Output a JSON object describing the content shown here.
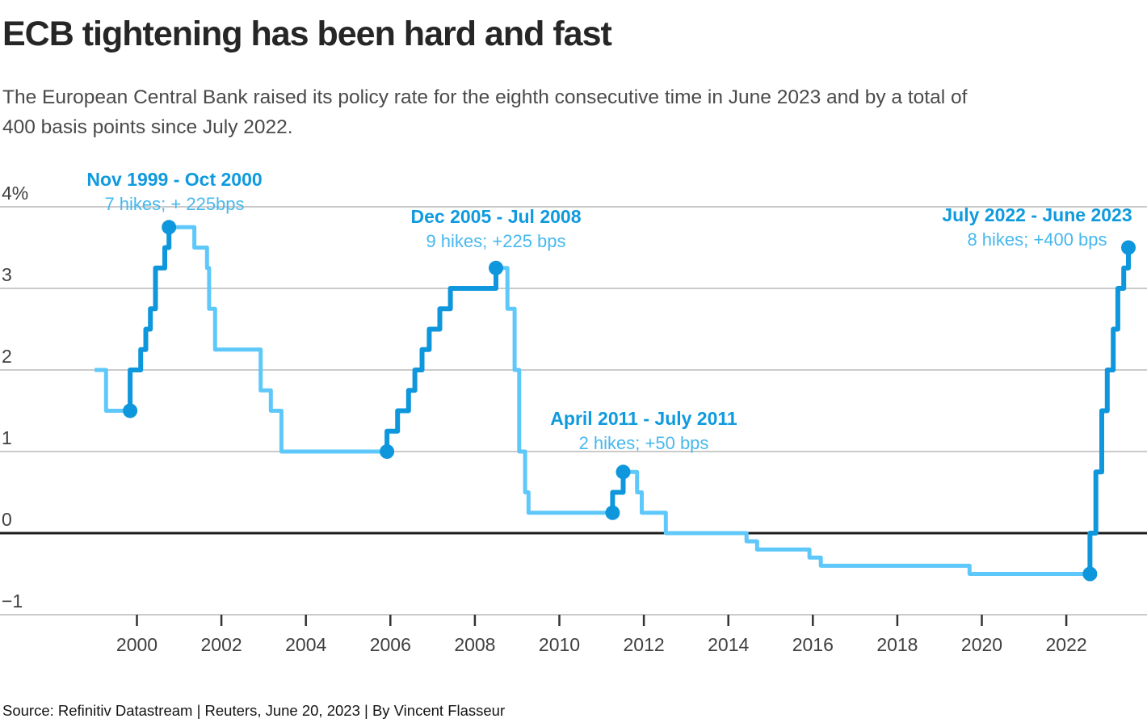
{
  "header": {
    "title": "ECB tightening has been hard and fast",
    "subtitle": "The European Central Bank raised its policy rate for the eighth consecutive time in June 2023 and by a total of\n400 basis points since July 2022."
  },
  "source": "Source: Refinitiv Datastream | Reuters, June 20, 2023 | By Vincent Flasseur",
  "colors": {
    "line_light": "#5fc8fa",
    "line_dark": "#0e97dc",
    "annotation_title": "#0f9ade",
    "annotation_sub": "#47b8ee",
    "gridline": "#cacaca",
    "zero_line": "#1c1c1c",
    "tick": "#333333",
    "axis_text": "#3f3f3f"
  },
  "annotations": [
    {
      "title": "Nov 1999 - Oct 2000",
      "sub": "7 hikes; + 225bps"
    },
    {
      "title": "Dec 2005 - Jul 2008",
      "sub": "9 hikes; +225 bps"
    },
    {
      "title": "April 2011 - July 2011",
      "sub": "2 hikes; +50 bps"
    },
    {
      "title": "July 2022 - June 2023",
      "sub": "8 hikes; +400 bps"
    }
  ],
  "chart_data": {
    "type": "line",
    "step": true,
    "unit": "%",
    "x_range": [
      1999.0,
      2023.6
    ],
    "y_range": [
      -1,
      4
    ],
    "grid": "horizontal",
    "y_ticks": [
      {
        "value": 4,
        "label": "4%"
      },
      {
        "value": 3,
        "label": "3"
      },
      {
        "value": 2,
        "label": "2"
      },
      {
        "value": 1,
        "label": "1"
      },
      {
        "value": 0,
        "label": "0"
      },
      {
        "value": -1,
        "label": "−1"
      }
    ],
    "x_ticks": [
      {
        "value": 2000,
        "label": "2000"
      },
      {
        "value": 2002,
        "label": "2002"
      },
      {
        "value": 2004,
        "label": "2004"
      },
      {
        "value": 2006,
        "label": "2006"
      },
      {
        "value": 2008,
        "label": "2008"
      },
      {
        "value": 2010,
        "label": "2010"
      },
      {
        "value": 2012,
        "label": "2012"
      },
      {
        "value": 2014,
        "label": "2014"
      },
      {
        "value": 2016,
        "label": "2016"
      },
      {
        "value": 2018,
        "label": "2018"
      },
      {
        "value": 2020,
        "label": "2020"
      },
      {
        "value": 2022,
        "label": "2022"
      }
    ],
    "points": [
      [
        1999.0,
        2.0
      ],
      [
        1999.27,
        1.5
      ],
      [
        1999.84,
        2.0
      ],
      [
        2000.09,
        2.25
      ],
      [
        2000.21,
        2.5
      ],
      [
        2000.32,
        2.75
      ],
      [
        2000.44,
        3.25
      ],
      [
        2000.66,
        3.5
      ],
      [
        2000.76,
        3.75
      ],
      [
        2001.36,
        3.5
      ],
      [
        2001.66,
        3.25
      ],
      [
        2001.71,
        2.75
      ],
      [
        2001.85,
        2.25
      ],
      [
        2002.93,
        1.75
      ],
      [
        2003.17,
        1.5
      ],
      [
        2003.42,
        1.0
      ],
      [
        2005.92,
        1.25
      ],
      [
        2006.17,
        1.5
      ],
      [
        2006.43,
        1.75
      ],
      [
        2006.58,
        2.0
      ],
      [
        2006.75,
        2.25
      ],
      [
        2006.92,
        2.5
      ],
      [
        2007.17,
        2.75
      ],
      [
        2007.42,
        3.0
      ],
      [
        2008.5,
        3.25
      ],
      [
        2008.77,
        2.75
      ],
      [
        2008.94,
        2.0
      ],
      [
        2009.05,
        1.0
      ],
      [
        2009.19,
        0.5
      ],
      [
        2009.27,
        0.25
      ],
      [
        2011.26,
        0.5
      ],
      [
        2011.51,
        0.75
      ],
      [
        2011.84,
        0.5
      ],
      [
        2011.95,
        0.25
      ],
      [
        2012.52,
        0.0
      ],
      [
        2014.43,
        -0.1
      ],
      [
        2014.68,
        -0.2
      ],
      [
        2015.92,
        -0.3
      ],
      [
        2016.19,
        -0.4
      ],
      [
        2019.71,
        -0.5
      ],
      [
        2022.56,
        0.0
      ],
      [
        2022.7,
        0.75
      ],
      [
        2022.84,
        1.5
      ],
      [
        2022.97,
        2.0
      ],
      [
        2023.11,
        2.5
      ],
      [
        2023.22,
        3.0
      ],
      [
        2023.36,
        3.25
      ],
      [
        2023.47,
        3.5
      ]
    ],
    "hike_cycles": [
      {
        "start": 1999.84,
        "end": 2000.76
      },
      {
        "start": 2005.92,
        "end": 2008.5
      },
      {
        "start": 2011.26,
        "end": 2011.51
      },
      {
        "start": 2022.56,
        "end": 2023.47
      }
    ],
    "markers": [
      [
        1999.84,
        1.5
      ],
      [
        2000.76,
        3.75
      ],
      [
        2005.92,
        1.0
      ],
      [
        2008.5,
        3.25
      ],
      [
        2011.26,
        0.25
      ],
      [
        2011.51,
        0.75
      ],
      [
        2022.56,
        -0.5
      ],
      [
        2023.47,
        3.5
      ]
    ]
  }
}
